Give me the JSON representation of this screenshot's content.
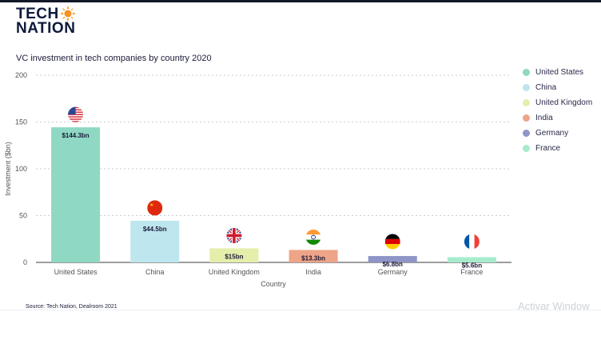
{
  "logo": {
    "line1": "TECH",
    "line2": "NATION",
    "accent": "#f7931e"
  },
  "source": "Source: Tech Nation, Dealroom 2021",
  "watermark": "Activar Window",
  "chart_data": {
    "type": "bar",
    "title": "VC investment in tech companies by country 2020",
    "xlabel": "Country",
    "ylabel": "Investment ($bn)",
    "ylim": [
      0,
      200
    ],
    "yticks": [
      0,
      50,
      100,
      150,
      200
    ],
    "grid": true,
    "legend_position": "right",
    "categories": [
      "United States",
      "China",
      "United Kingdom",
      "India",
      "Germany",
      "France"
    ],
    "values": [
      144.3,
      44.5,
      15,
      13.3,
      6.8,
      5.6
    ],
    "data_labels": [
      "$144.3bn",
      "$44.5bn",
      "$15bn",
      "$13.3bn",
      "$6.8bn",
      "$5.6bn"
    ],
    "colors": [
      "#8fd8c3",
      "#bde6ee",
      "#e5eeaa",
      "#eea487",
      "#8f95c6",
      "#a6eccc"
    ],
    "flags": [
      "us-flag-icon",
      "china-flag-icon",
      "uk-flag-icon",
      "india-flag-icon",
      "germany-flag-icon",
      "france-flag-icon"
    ]
  }
}
